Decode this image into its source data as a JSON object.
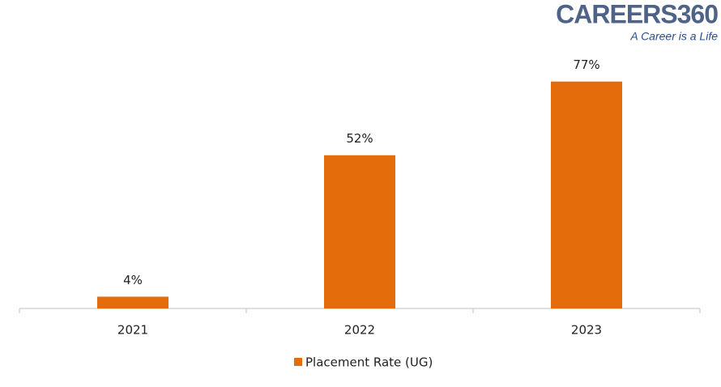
{
  "chart_data": {
    "type": "bar",
    "categories": [
      "2021",
      "2022",
      "2023"
    ],
    "series": [
      {
        "name": "Placement Rate (UG)",
        "color": "#e46c0a",
        "values": [
          4,
          52,
          77
        ],
        "value_labels": [
          "4%",
          "52%",
          "77%"
        ]
      }
    ],
    "ylim": [
      0,
      90
    ],
    "legend": "bottom"
  },
  "logo": {
    "name": "CAREERS360",
    "tagline": "A Career is a Life"
  }
}
